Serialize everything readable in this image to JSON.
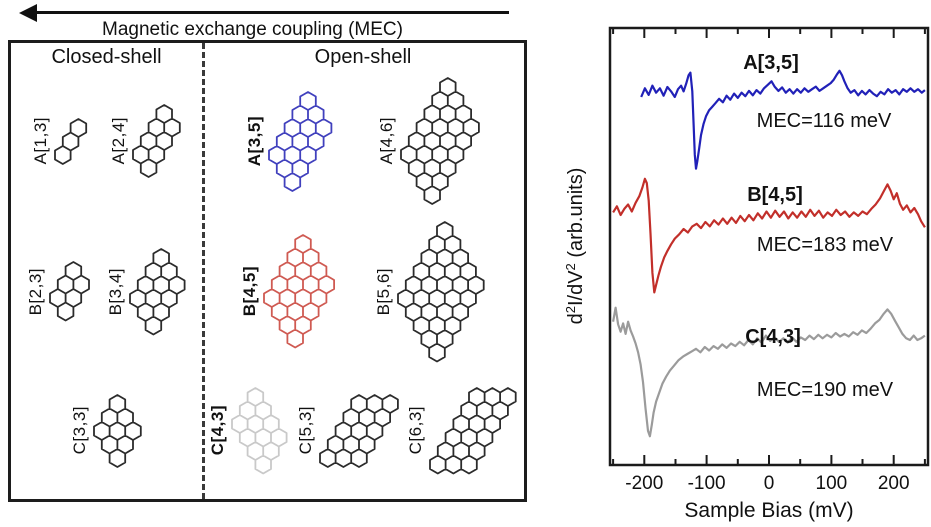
{
  "figure": {
    "arrow_label": "Magnetic exchange coupling (MEC)",
    "left_panel": {
      "closed_shell_header": "Closed-shell",
      "open_shell_header": "Open-shell",
      "rows": [
        {
          "closed": [
            {
              "label": "A[1,3]",
              "cols": 1,
              "rows": 3,
              "color": "#2b2b2b",
              "bold": false,
              "tilt": false
            },
            {
              "label": "A[2,4]",
              "cols": 2,
              "rows": 4,
              "color": "#2b2b2b",
              "bold": false,
              "tilt": false
            }
          ],
          "open": [
            {
              "label": "A[3,5]",
              "cols": 3,
              "rows": 5,
              "color": "#4040bd",
              "bold": true,
              "tilt": false
            },
            {
              "label": "A[4,6]",
              "cols": 4,
              "rows": 6,
              "color": "#2b2b2b",
              "bold": false,
              "tilt": false
            }
          ]
        },
        {
          "closed": [
            {
              "label": "B[2,3]",
              "cols": 2,
              "rows": 3,
              "color": "#2b2b2b",
              "bold": false,
              "tilt": false
            },
            {
              "label": "B[3,4]",
              "cols": 3,
              "rows": 4,
              "color": "#2b2b2b",
              "bold": false,
              "tilt": false
            }
          ],
          "open": [
            {
              "label": "B[4,5]",
              "cols": 4,
              "rows": 5,
              "color": "#cf5a52",
              "bold": true,
              "tilt": false
            },
            {
              "label": "B[5,6]",
              "cols": 5,
              "rows": 6,
              "color": "#2b2b2b",
              "bold": false,
              "tilt": false
            }
          ]
        },
        {
          "closed": [
            {
              "label": "C[3,3]",
              "cols": 3,
              "rows": 3,
              "color": "#2b2b2b",
              "bold": false,
              "tilt": false
            }
          ],
          "open": [
            {
              "label": "C[4,3]",
              "cols": 4,
              "rows": 3,
              "color": "#c9c9c9",
              "bold": true,
              "tilt": false
            },
            {
              "label": "C[5,3]",
              "cols": 5,
              "rows": 3,
              "color": "#2b2b2b",
              "bold": false,
              "tilt": true
            },
            {
              "label": "C[6,3]",
              "cols": 6,
              "rows": 3,
              "color": "#2b2b2b",
              "bold": false,
              "tilt": true
            }
          ]
        }
      ]
    }
  },
  "chart_data": {
    "type": "line",
    "xlabel": "Sample Bias (mV)",
    "ylabel": "d2I/dV2 (arb.units)",
    "ylabel_segments": [
      {
        "t": "d"
      },
      {
        "t": "2",
        "sup": true
      },
      {
        "t": "I/dV"
      },
      {
        "t": "2",
        "sup": true
      },
      {
        "t": " (arb.units)"
      }
    ],
    "xlim": [
      -255,
      255
    ],
    "ylim": [
      0,
      10
    ],
    "xticks_major": [
      -200,
      -100,
      0,
      100,
      200
    ],
    "xticks_minor": [
      -250,
      -150,
      -50,
      50,
      150,
      250
    ],
    "grid": false,
    "legend_position": "inline-labels",
    "series": [
      {
        "name": "A[3,5]",
        "annotation": "MEC=116 meV",
        "color": "#2121b8",
        "points": [
          [
            -205,
            8.42
          ],
          [
            -199,
            8.62
          ],
          [
            -193,
            8.47
          ],
          [
            -187,
            8.68
          ],
          [
            -181,
            8.52
          ],
          [
            -175,
            8.62
          ],
          [
            -169,
            8.45
          ],
          [
            -163,
            8.65
          ],
          [
            -157,
            8.55
          ],
          [
            -151,
            8.42
          ],
          [
            -146,
            8.6
          ],
          [
            -141,
            8.68
          ],
          [
            -137,
            8.55
          ],
          [
            -133,
            8.72
          ],
          [
            -129,
            8.92
          ],
          [
            -126,
            8.98
          ],
          [
            -123,
            8.55
          ],
          [
            -121,
            7.8
          ],
          [
            -119,
            7.1
          ],
          [
            -117,
            6.78
          ],
          [
            -115,
            6.95
          ],
          [
            -112,
            7.25
          ],
          [
            -109,
            7.55
          ],
          [
            -105,
            7.8
          ],
          [
            -101,
            7.98
          ],
          [
            -96,
            8.12
          ],
          [
            -91,
            8.2
          ],
          [
            -86,
            8.28
          ],
          [
            -80,
            8.38
          ],
          [
            -74,
            8.3
          ],
          [
            -68,
            8.45
          ],
          [
            -62,
            8.36
          ],
          [
            -56,
            8.5
          ],
          [
            -50,
            8.4
          ],
          [
            -44,
            8.52
          ],
          [
            -38,
            8.44
          ],
          [
            -32,
            8.56
          ],
          [
            -26,
            8.46
          ],
          [
            -20,
            8.58
          ],
          [
            -14,
            8.5
          ],
          [
            -8,
            8.62
          ],
          [
            -2,
            8.7
          ],
          [
            4,
            8.78
          ],
          [
            9,
            8.66
          ],
          [
            15,
            8.56
          ],
          [
            21,
            8.64
          ],
          [
            27,
            8.52
          ],
          [
            33,
            8.6
          ],
          [
            39,
            8.5
          ],
          [
            45,
            8.6
          ],
          [
            51,
            8.52
          ],
          [
            57,
            8.62
          ],
          [
            63,
            8.54
          ],
          [
            69,
            8.6
          ],
          [
            75,
            8.66
          ],
          [
            81,
            8.56
          ],
          [
            87,
            8.62
          ],
          [
            93,
            8.68
          ],
          [
            99,
            8.74
          ],
          [
            104,
            8.82
          ],
          [
            109,
            8.94
          ],
          [
            113,
            9.02
          ],
          [
            117,
            8.92
          ],
          [
            121,
            8.78
          ],
          [
            126,
            8.62
          ],
          [
            131,
            8.52
          ],
          [
            137,
            8.58
          ],
          [
            143,
            8.46
          ],
          [
            149,
            8.56
          ],
          [
            155,
            8.48
          ],
          [
            161,
            8.58
          ],
          [
            167,
            8.5
          ],
          [
            173,
            8.44
          ],
          [
            179,
            8.54
          ],
          [
            185,
            8.48
          ],
          [
            191,
            8.6
          ],
          [
            197,
            8.52
          ],
          [
            203,
            8.58
          ],
          [
            209,
            8.48
          ],
          [
            215,
            8.6
          ],
          [
            221,
            8.54
          ],
          [
            227,
            8.62
          ],
          [
            233,
            8.54
          ],
          [
            239,
            8.6
          ],
          [
            245,
            8.52
          ],
          [
            250,
            8.58
          ]
        ]
      },
      {
        "name": "B[4,5]",
        "annotation": "MEC=183 meV",
        "color": "#c22f2a",
        "points": [
          [
            -250,
            5.78
          ],
          [
            -244,
            5.92
          ],
          [
            -238,
            5.72
          ],
          [
            -232,
            5.86
          ],
          [
            -226,
            5.96
          ],
          [
            -220,
            5.8
          ],
          [
            -214,
            6.0
          ],
          [
            -208,
            6.15
          ],
          [
            -203,
            6.35
          ],
          [
            -199,
            6.55
          ],
          [
            -196,
            6.45
          ],
          [
            -193,
            6.05
          ],
          [
            -190,
            5.3
          ],
          [
            -187,
            4.4
          ],
          [
            -184,
            3.95
          ],
          [
            -181,
            4.12
          ],
          [
            -177,
            4.35
          ],
          [
            -173,
            4.55
          ],
          [
            -168,
            4.75
          ],
          [
            -163,
            4.9
          ],
          [
            -157,
            5.05
          ],
          [
            -151,
            5.18
          ],
          [
            -144,
            5.28
          ],
          [
            -137,
            5.4
          ],
          [
            -130,
            5.32
          ],
          [
            -123,
            5.46
          ],
          [
            -116,
            5.52
          ],
          [
            -109,
            5.42
          ],
          [
            -102,
            5.56
          ],
          [
            -95,
            5.46
          ],
          [
            -88,
            5.6
          ],
          [
            -81,
            5.5
          ],
          [
            -74,
            5.64
          ],
          [
            -67,
            5.52
          ],
          [
            -60,
            5.66
          ],
          [
            -53,
            5.54
          ],
          [
            -46,
            5.7
          ],
          [
            -39,
            5.58
          ],
          [
            -32,
            5.72
          ],
          [
            -25,
            5.6
          ],
          [
            -18,
            5.76
          ],
          [
            -11,
            5.64
          ],
          [
            -4,
            5.8
          ],
          [
            3,
            5.66
          ],
          [
            10,
            5.82
          ],
          [
            17,
            5.68
          ],
          [
            24,
            5.8
          ],
          [
            31,
            5.64
          ],
          [
            38,
            5.78
          ],
          [
            45,
            5.66
          ],
          [
            52,
            5.8
          ],
          [
            59,
            5.68
          ],
          [
            66,
            5.84
          ],
          [
            73,
            5.7
          ],
          [
            80,
            5.82
          ],
          [
            87,
            5.66
          ],
          [
            94,
            5.78
          ],
          [
            101,
            5.7
          ],
          [
            108,
            5.84
          ],
          [
            115,
            5.72
          ],
          [
            122,
            5.8
          ],
          [
            129,
            5.68
          ],
          [
            136,
            5.78
          ],
          [
            143,
            5.7
          ],
          [
            150,
            5.8
          ],
          [
            157,
            5.74
          ],
          [
            164,
            5.86
          ],
          [
            171,
            5.96
          ],
          [
            178,
            6.1
          ],
          [
            184,
            6.26
          ],
          [
            190,
            6.42
          ],
          [
            195,
            6.28
          ],
          [
            200,
            6.08
          ],
          [
            205,
            6.22
          ],
          [
            210,
            5.98
          ],
          [
            215,
            5.84
          ],
          [
            221,
            5.94
          ],
          [
            227,
            5.78
          ],
          [
            233,
            5.88
          ],
          [
            239,
            5.74
          ],
          [
            244,
            5.58
          ],
          [
            250,
            5.44
          ]
        ]
      },
      {
        "name": "C[4,3]",
        "annotation": "MEC=190 meV",
        "color": "#9b9b9b",
        "points": [
          [
            -250,
            3.28
          ],
          [
            -246,
            3.6
          ],
          [
            -242,
            3.22
          ],
          [
            -238,
            3.05
          ],
          [
            -234,
            3.24
          ],
          [
            -230,
            3.0
          ],
          [
            -226,
            3.28
          ],
          [
            -222,
            3.08
          ],
          [
            -218,
            2.94
          ],
          [
            -214,
            2.78
          ],
          [
            -210,
            2.58
          ],
          [
            -206,
            2.3
          ],
          [
            -202,
            1.9
          ],
          [
            -198,
            1.3
          ],
          [
            -194,
            0.78
          ],
          [
            -191,
            0.66
          ],
          [
            -188,
            0.92
          ],
          [
            -185,
            1.2
          ],
          [
            -181,
            1.45
          ],
          [
            -176,
            1.66
          ],
          [
            -171,
            1.86
          ],
          [
            -165,
            2.02
          ],
          [
            -159,
            2.16
          ],
          [
            -152,
            2.28
          ],
          [
            -145,
            2.4
          ],
          [
            -138,
            2.48
          ],
          [
            -131,
            2.54
          ],
          [
            -124,
            2.6
          ],
          [
            -117,
            2.66
          ],
          [
            -110,
            2.58
          ],
          [
            -103,
            2.7
          ],
          [
            -96,
            2.62
          ],
          [
            -89,
            2.72
          ],
          [
            -82,
            2.66
          ],
          [
            -75,
            2.76
          ],
          [
            -68,
            2.68
          ],
          [
            -61,
            2.78
          ],
          [
            -54,
            2.72
          ],
          [
            -47,
            2.82
          ],
          [
            -40,
            2.74
          ],
          [
            -33,
            2.86
          ],
          [
            -26,
            2.76
          ],
          [
            -19,
            2.9
          ],
          [
            -12,
            2.8
          ],
          [
            -5,
            2.96
          ],
          [
            2,
            2.84
          ],
          [
            9,
            2.92
          ],
          [
            16,
            2.82
          ],
          [
            23,
            2.9
          ],
          [
            30,
            2.8
          ],
          [
            37,
            2.92
          ],
          [
            44,
            2.82
          ],
          [
            51,
            2.92
          ],
          [
            58,
            2.86
          ],
          [
            65,
            2.96
          ],
          [
            72,
            2.88
          ],
          [
            79,
            2.98
          ],
          [
            86,
            2.9
          ],
          [
            93,
            2.98
          ],
          [
            100,
            2.92
          ],
          [
            107,
            3.02
          ],
          [
            114,
            2.94
          ],
          [
            121,
            3.0
          ],
          [
            128,
            2.94
          ],
          [
            135,
            3.04
          ],
          [
            142,
            2.98
          ],
          [
            149,
            3.08
          ],
          [
            156,
            3.02
          ],
          [
            163,
            3.12
          ],
          [
            170,
            3.24
          ],
          [
            177,
            3.32
          ],
          [
            184,
            3.46
          ],
          [
            190,
            3.56
          ],
          [
            196,
            3.46
          ],
          [
            202,
            3.3
          ],
          [
            208,
            3.15
          ],
          [
            214,
            3.0
          ],
          [
            220,
            2.9
          ],
          [
            226,
            2.86
          ],
          [
            232,
            2.96
          ],
          [
            238,
            2.86
          ],
          [
            244,
            2.9
          ],
          [
            250,
            2.96
          ]
        ]
      }
    ]
  }
}
